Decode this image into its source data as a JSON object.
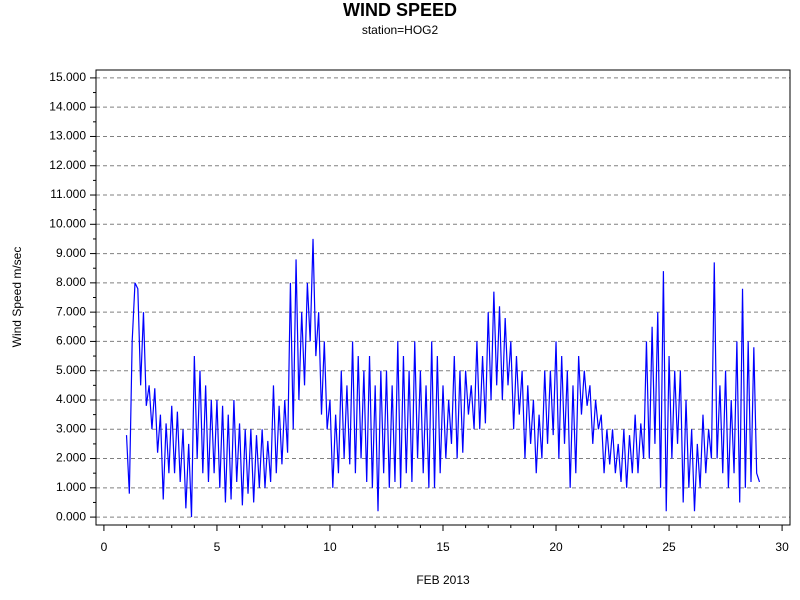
{
  "chart_data": {
    "type": "line",
    "title": "WIND SPEED",
    "subtitle": "station=HOG2",
    "x_label": "FEB 2013",
    "y_label": "Wind Speed m/sec",
    "color": "#0000ff",
    "grid": true,
    "xlim": [
      -0.35,
      30.35
    ],
    "ylim": [
      -0.27,
      15.27
    ],
    "xticks": [
      0,
      5,
      10,
      15,
      20,
      25,
      30
    ],
    "xminorticks": [
      1,
      2,
      3,
      4,
      6,
      7,
      8,
      9,
      11,
      12,
      13,
      14,
      16,
      17,
      18,
      19,
      21,
      22,
      23,
      24,
      26,
      27,
      28,
      29
    ],
    "yticks": [
      {
        "value": 0,
        "label": "0.000"
      },
      {
        "value": 1,
        "label": "1.000"
      },
      {
        "value": 2,
        "label": "2.000"
      },
      {
        "value": 3,
        "label": "3.000"
      },
      {
        "value": 4,
        "label": "4.000"
      },
      {
        "value": 5,
        "label": "5.000"
      },
      {
        "value": 6,
        "label": "6.000"
      },
      {
        "value": 7,
        "label": "7.000"
      },
      {
        "value": 8,
        "label": "8.000"
      },
      {
        "value": 9,
        "label": "9.000"
      },
      {
        "value": 10,
        "label": "10.000"
      },
      {
        "value": 11,
        "label": "11.000"
      },
      {
        "value": 12,
        "label": "12.000"
      },
      {
        "value": 13,
        "label": "13.000"
      },
      {
        "value": 14,
        "label": "14.000"
      },
      {
        "value": 15,
        "label": "15.000"
      }
    ],
    "yminorticks": [
      0.5,
      1.5,
      2.5,
      3.5,
      4.5,
      5.5,
      6.5,
      7.5,
      8.5,
      9.5,
      10.5,
      11.5,
      12.5,
      13.5,
      14.5
    ],
    "x": [
      1,
      1.125,
      1.25,
      1.375,
      1.5,
      1.625,
      1.75,
      1.875,
      2,
      2.125,
      2.25,
      2.375,
      2.5,
      2.625,
      2.75,
      2.875,
      3,
      3.125,
      3.25,
      3.375,
      3.5,
      3.625,
      3.75,
      3.875,
      4,
      4.125,
      4.25,
      4.375,
      4.5,
      4.625,
      4.75,
      4.875,
      5,
      5.125,
      5.25,
      5.375,
      5.5,
      5.625,
      5.75,
      5.875,
      6,
      6.125,
      6.25,
      6.375,
      6.5,
      6.625,
      6.75,
      6.875,
      7,
      7.125,
      7.25,
      7.375,
      7.5,
      7.625,
      7.75,
      7.875,
      8,
      8.125,
      8.25,
      8.375,
      8.5,
      8.625,
      8.75,
      8.875,
      9,
      9.125,
      9.25,
      9.375,
      9.5,
      9.625,
      9.75,
      9.875,
      10,
      10.125,
      10.25,
      10.375,
      10.5,
      10.625,
      10.75,
      10.875,
      11,
      11.125,
      11.25,
      11.375,
      11.5,
      11.625,
      11.75,
      11.875,
      12,
      12.125,
      12.25,
      12.375,
      12.5,
      12.625,
      12.75,
      12.875,
      13,
      13.125,
      13.25,
      13.375,
      13.5,
      13.625,
      13.75,
      13.875,
      14,
      14.125,
      14.25,
      14.375,
      14.5,
      14.625,
      14.75,
      14.875,
      15,
      15.125,
      15.25,
      15.375,
      15.5,
      15.625,
      15.75,
      15.875,
      16,
      16.125,
      16.25,
      16.375,
      16.5,
      16.625,
      16.75,
      16.875,
      17,
      17.125,
      17.25,
      17.375,
      17.5,
      17.625,
      17.75,
      17.875,
      18,
      18.125,
      18.25,
      18.375,
      18.5,
      18.625,
      18.75,
      18.875,
      19,
      19.125,
      19.25,
      19.375,
      19.5,
      19.625,
      19.75,
      19.875,
      20,
      20.125,
      20.25,
      20.375,
      20.5,
      20.625,
      20.75,
      20.875,
      21,
      21.125,
      21.25,
      21.375,
      21.5,
      21.625,
      21.75,
      21.875,
      22,
      22.125,
      22.25,
      22.375,
      22.5,
      22.625,
      22.75,
      22.875,
      23,
      23.125,
      23.25,
      23.375,
      23.5,
      23.625,
      23.75,
      23.875,
      24,
      24.125,
      24.25,
      24.375,
      24.5,
      24.625,
      24.75,
      24.875,
      25,
      25.125,
      25.25,
      25.375,
      25.5,
      25.625,
      25.75,
      25.875,
      26,
      26.125,
      26.25,
      26.375,
      26.5,
      26.625,
      26.75,
      26.875,
      27,
      27.125,
      27.25,
      27.375,
      27.5,
      27.625,
      27.75,
      27.875,
      28,
      28.125,
      28.25,
      28.375,
      28.5,
      28.625,
      28.75,
      28.875,
      29
    ],
    "values": [
      2.8,
      0.8,
      6.0,
      8.0,
      7.8,
      4.5,
      7.0,
      3.8,
      4.5,
      3.0,
      4.4,
      2.2,
      3.5,
      0.6,
      3.2,
      1.5,
      3.8,
      1.5,
      3.6,
      1.2,
      3.0,
      0.3,
      2.5,
      0.0,
      5.5,
      2.0,
      5.0,
      1.5,
      4.5,
      1.2,
      4.0,
      1.5,
      4.0,
      1.0,
      3.8,
      0.5,
      3.5,
      0.6,
      4.0,
      1.2,
      3.2,
      0.4,
      3.0,
      0.8,
      3.0,
      0.5,
      2.8,
      1.0,
      3.0,
      1.0,
      2.6,
      1.2,
      4.5,
      1.5,
      3.8,
      1.8,
      4.0,
      2.2,
      8.0,
      3.0,
      8.8,
      4.0,
      7.0,
      4.5,
      8.0,
      6.0,
      9.5,
      5.5,
      7.0,
      3.5,
      6.0,
      3.0,
      4.0,
      1.0,
      3.5,
      1.5,
      5.0,
      2.0,
      4.5,
      1.8,
      6.0,
      1.5,
      5.5,
      2.0,
      5.0,
      1.2,
      5.5,
      1.0,
      4.5,
      0.2,
      5.0,
      1.5,
      5.0,
      1.0,
      4.5,
      1.2,
      6.0,
      1.0,
      5.5,
      1.5,
      5.0,
      1.2,
      6.0,
      2.0,
      5.0,
      1.5,
      4.5,
      1.0,
      6.0,
      1.0,
      5.5,
      1.5,
      4.5,
      2.0,
      4.0,
      2.5,
      5.5,
      2.0,
      5.0,
      2.2,
      5.0,
      3.5,
      4.5,
      3.0,
      6.0,
      3.0,
      5.5,
      3.2,
      7.0,
      4.0,
      7.7,
      4.5,
      7.2,
      4.0,
      6.8,
      4.5,
      6.0,
      3.0,
      5.5,
      3.5,
      5.0,
      2.0,
      4.5,
      2.5,
      4.0,
      1.5,
      3.5,
      2.0,
      5.0,
      2.5,
      5.0,
      2.8,
      6.0,
      2.0,
      5.5,
      2.5,
      5.0,
      1.0,
      4.5,
      1.5,
      5.5,
      3.5,
      5.0,
      3.8,
      4.5,
      2.5,
      4.0,
      3.0,
      3.5,
      1.5,
      3.0,
      1.8,
      3.0,
      1.5,
      2.5,
      1.2,
      3.0,
      1.0,
      2.8,
      1.5,
      3.5,
      1.5,
      3.2,
      2.0,
      6.0,
      2.0,
      6.5,
      2.5,
      7.0,
      1.0,
      8.4,
      0.2,
      5.5,
      2.0,
      5.0,
      2.5,
      5.0,
      0.5,
      4.0,
      1.0,
      3.0,
      0.2,
      2.5,
      1.0,
      3.5,
      1.5,
      3.0,
      2.0,
      8.7,
      2.0,
      4.5,
      1.5,
      5.0,
      1.0,
      4.0,
      1.5,
      6.0,
      0.5,
      7.8,
      1.0,
      6.0,
      1.2,
      5.8,
      1.5,
      1.2
    ]
  }
}
